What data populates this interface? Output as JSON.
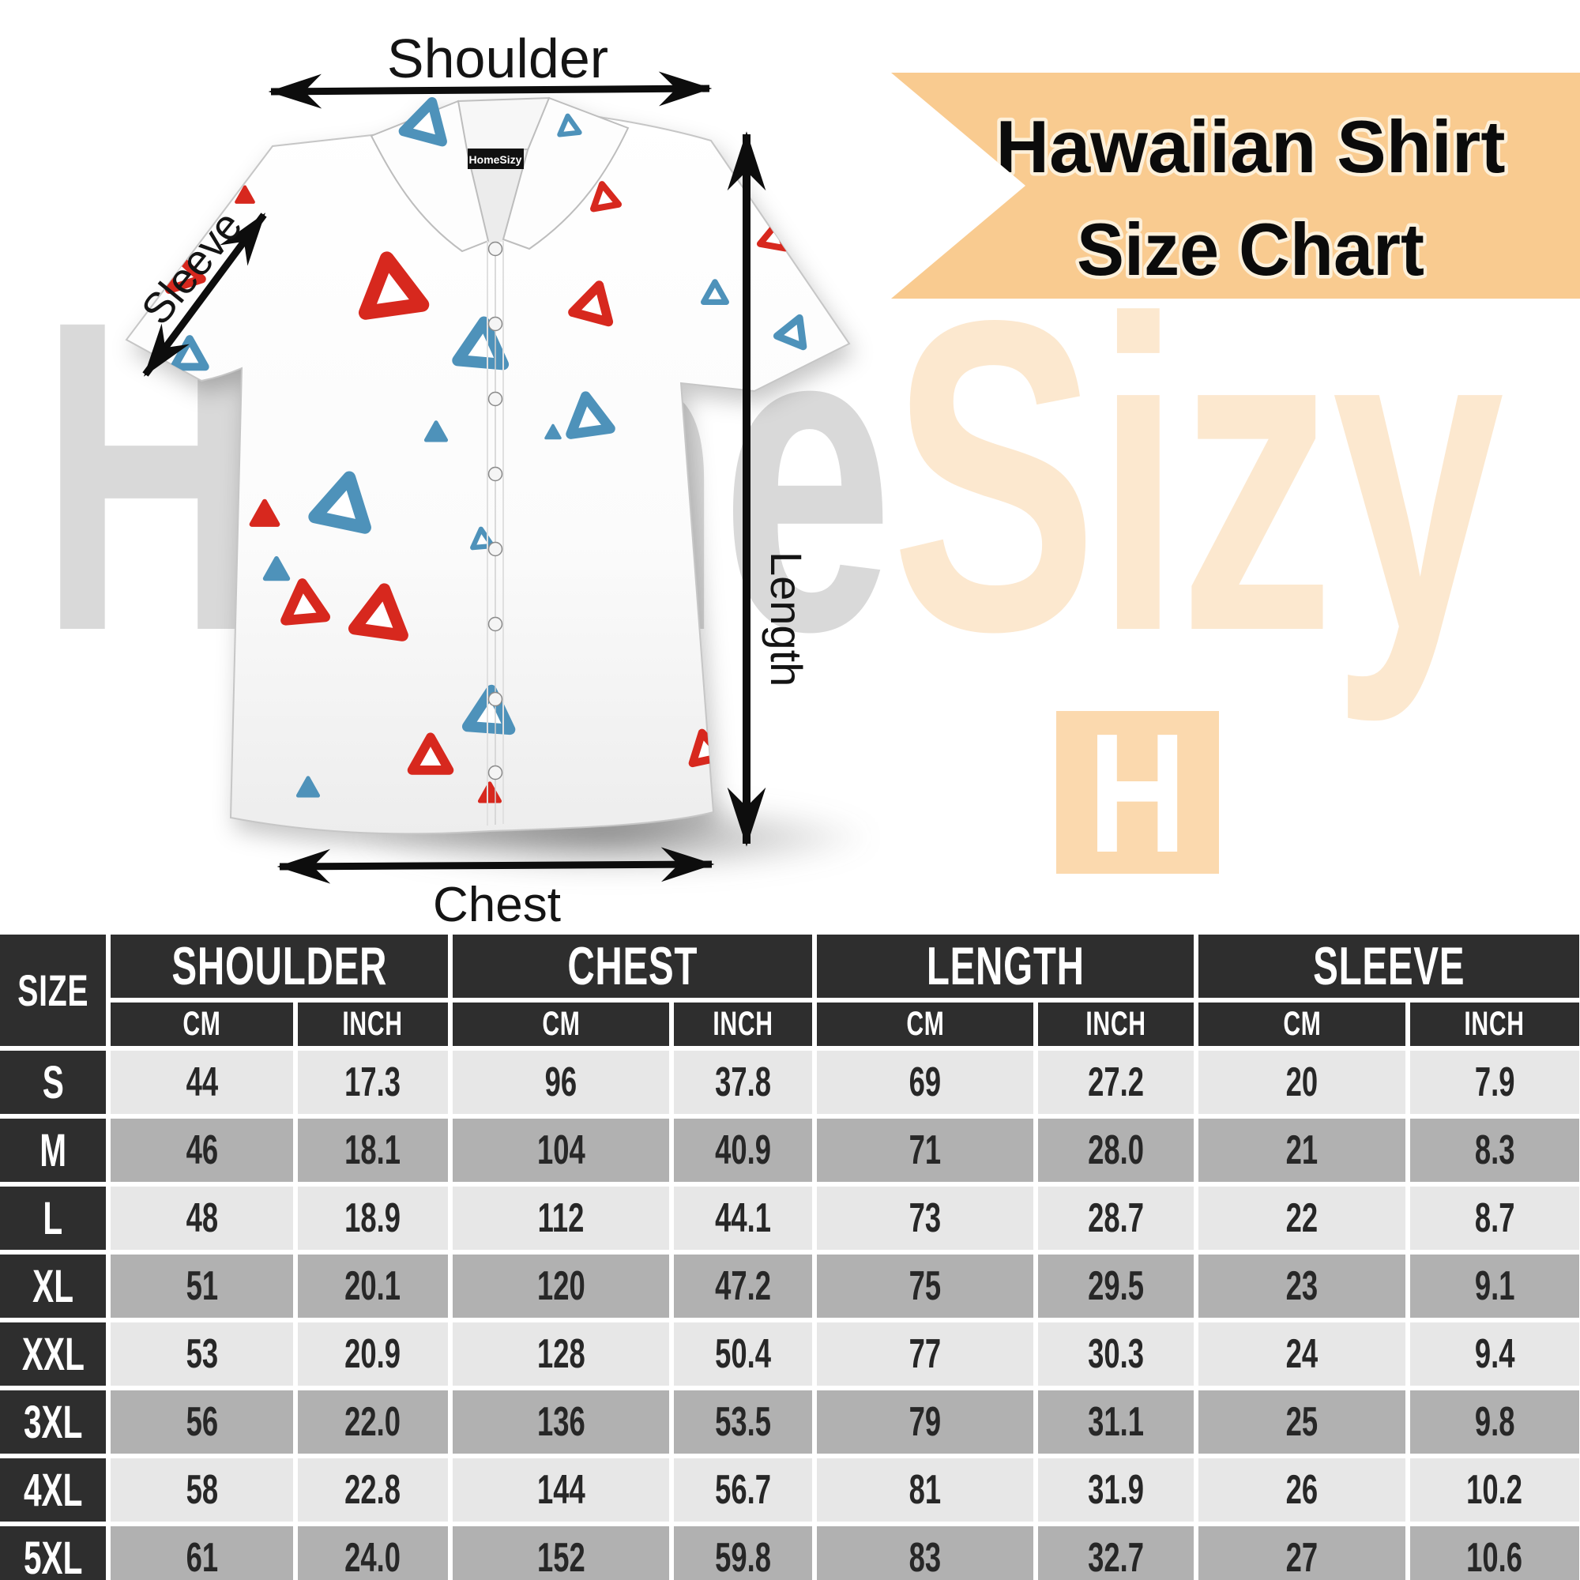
{
  "banner": {
    "line1": "Hawaiian Shirt",
    "line2": "Size Chart",
    "bg_color": "#f9cb90",
    "text_color": "#0b0b0b",
    "outline_color": "#fdf0da"
  },
  "watermark": {
    "part1": "Home",
    "part2": "Sizy",
    "part1_color": "#d9d9d9",
    "part2_color": "#fce8cf"
  },
  "logo_block": {
    "letter": "H",
    "bg_color": "#fbd9ae",
    "letter_color": "#ffffff"
  },
  "shirt": {
    "collar_label": "HomeSizy",
    "pattern_red": "#d7281e",
    "pattern_blue": "#4e92ba"
  },
  "measurements": {
    "shoulder": "Shoulder",
    "sleeve": "Sleeve",
    "length": "Length",
    "chest": "Chest"
  },
  "table": {
    "size_header": "SIZE",
    "groups": [
      {
        "label": "SHOULDER"
      },
      {
        "label": "CHEST"
      },
      {
        "label": "LENGTH"
      },
      {
        "label": "SLEEVE"
      }
    ],
    "unit_cm": "CM",
    "unit_inch": "INCH",
    "header_bg": "#2e2e2e",
    "row_light": "#e7e7e7",
    "row_dark": "#b1b1b1",
    "rows": [
      {
        "size": "S",
        "values": [
          "44",
          "17.3",
          "96",
          "37.8",
          "69",
          "27.2",
          "20",
          "7.9"
        ]
      },
      {
        "size": "M",
        "values": [
          "46",
          "18.1",
          "104",
          "40.9",
          "71",
          "28.0",
          "21",
          "8.3"
        ]
      },
      {
        "size": "L",
        "values": [
          "48",
          "18.9",
          "112",
          "44.1",
          "73",
          "28.7",
          "22",
          "8.7"
        ]
      },
      {
        "size": "XL",
        "values": [
          "51",
          "20.1",
          "120",
          "47.2",
          "75",
          "29.5",
          "23",
          "9.1"
        ]
      },
      {
        "size": "XXL",
        "values": [
          "53",
          "20.9",
          "128",
          "50.4",
          "77",
          "30.3",
          "24",
          "9.4"
        ]
      },
      {
        "size": "3XL",
        "values": [
          "56",
          "22.0",
          "136",
          "53.5",
          "79",
          "31.1",
          "25",
          "9.8"
        ]
      },
      {
        "size": "4XL",
        "values": [
          "58",
          "22.8",
          "144",
          "56.7",
          "81",
          "31.9",
          "26",
          "10.2"
        ]
      },
      {
        "size": "5XL",
        "values": [
          "61",
          "24.0",
          "152",
          "59.8",
          "83",
          "32.7",
          "27",
          "10.6"
        ]
      }
    ]
  },
  "chart_data": {
    "type": "table",
    "title": "Hawaiian Shirt Size Chart",
    "columns": [
      "SIZE",
      "SHOULDER CM",
      "SHOULDER INCH",
      "CHEST CM",
      "CHEST INCH",
      "LENGTH CM",
      "LENGTH INCH",
      "SLEEVE CM",
      "SLEEVE INCH"
    ],
    "rows": [
      [
        "S",
        44,
        17.3,
        96,
        37.8,
        69,
        27.2,
        20,
        7.9
      ],
      [
        "M",
        46,
        18.1,
        104,
        40.9,
        71,
        28.0,
        21,
        8.3
      ],
      [
        "L",
        48,
        18.9,
        112,
        44.1,
        73,
        28.7,
        22,
        8.7
      ],
      [
        "XL",
        51,
        20.1,
        120,
        47.2,
        75,
        29.5,
        23,
        9.1
      ],
      [
        "XXL",
        53,
        20.9,
        128,
        50.4,
        77,
        30.3,
        24,
        9.4
      ],
      [
        "3XL",
        56,
        22.0,
        136,
        53.5,
        79,
        31.1,
        25,
        9.8
      ],
      [
        "4XL",
        58,
        22.8,
        144,
        56.7,
        81,
        31.9,
        26,
        10.2
      ],
      [
        "5XL",
        61,
        24.0,
        152,
        59.8,
        83,
        32.7,
        27,
        10.6
      ]
    ]
  }
}
